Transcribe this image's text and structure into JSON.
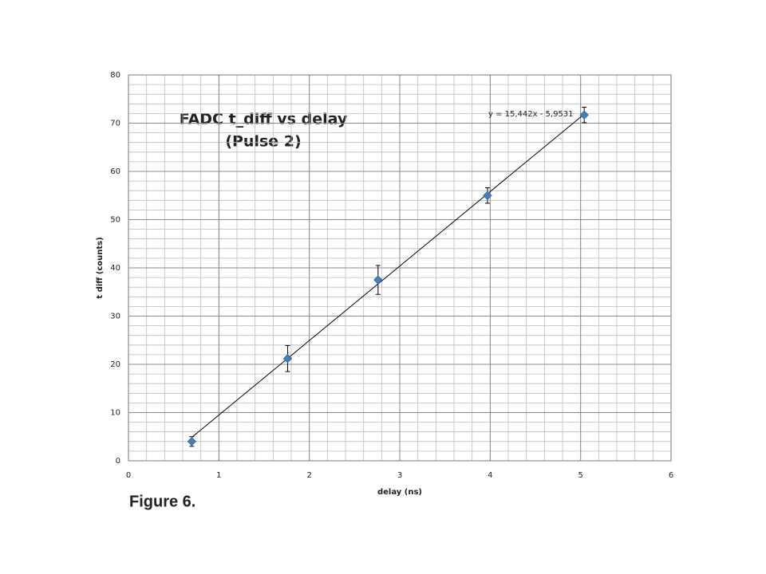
{
  "chart_data": {
    "type": "scatter",
    "title": "FADC  t_diff vs delay",
    "subtitle": "(Pulse 2)",
    "x_label": "delay (ns)",
    "y_label": "t diff (counts)",
    "series": [
      {
        "x": [
          0.7,
          1.76,
          2.76,
          3.97,
          5.04
        ],
        "values": [
          4.0,
          21.2,
          37.5,
          55.0,
          71.7
        ],
        "errors": [
          1.0,
          2.7,
          3.0,
          1.6,
          1.6
        ],
        "color": "#4a7ebb"
      }
    ],
    "trendline": {
      "label": "y = 15,442x - 5,9531",
      "slope": 15.442,
      "intercept": -5.9531
    },
    "xlim": [
      0,
      6
    ],
    "xticks": [
      0,
      1,
      2,
      3,
      4,
      5,
      6
    ],
    "ylim": [
      0,
      80
    ],
    "yticks": [
      0,
      10,
      20,
      30,
      40,
      50,
      60,
      70,
      80
    ],
    "grid": true,
    "x_minor_step": 0.2,
    "y_minor_step": 2
  },
  "caption": "Figure 6."
}
